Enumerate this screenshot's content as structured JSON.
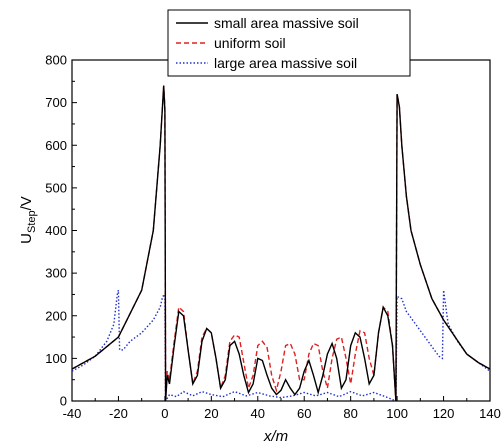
{
  "chart_data": {
    "type": "line",
    "xlabel": "x/m",
    "ylabel_main": "U",
    "ylabel_sub": "Step",
    "ylabel_unit": "/V",
    "xlim": [
      -40,
      140
    ],
    "ylim": [
      0,
      800
    ],
    "xticks": [
      -40,
      -20,
      0,
      20,
      40,
      60,
      80,
      100,
      120,
      140
    ],
    "yticks": [
      0,
      100,
      200,
      300,
      400,
      500,
      600,
      700,
      800
    ],
    "grid": false,
    "legend_position": "top-right",
    "series": [
      {
        "name": "small area massive soil",
        "color": "#000000",
        "dash": "solid",
        "points": [
          [
            -40,
            75
          ],
          [
            -30,
            105
          ],
          [
            -20,
            150
          ],
          [
            -10,
            260
          ],
          [
            -5,
            400
          ],
          [
            -2,
            600
          ],
          [
            -0.5,
            740
          ],
          [
            0,
            680
          ],
          [
            0.3,
            0
          ],
          [
            1,
            60
          ],
          [
            2,
            40
          ],
          [
            4,
            130
          ],
          [
            6,
            210
          ],
          [
            8,
            200
          ],
          [
            10,
            120
          ],
          [
            12,
            40
          ],
          [
            14,
            60
          ],
          [
            16,
            140
          ],
          [
            18,
            170
          ],
          [
            20,
            160
          ],
          [
            22,
            100
          ],
          [
            24,
            30
          ],
          [
            26,
            50
          ],
          [
            28,
            130
          ],
          [
            30,
            140
          ],
          [
            32,
            110
          ],
          [
            34,
            60
          ],
          [
            36,
            20
          ],
          [
            38,
            40
          ],
          [
            40,
            100
          ],
          [
            42,
            95
          ],
          [
            44,
            60
          ],
          [
            46,
            30
          ],
          [
            48,
            15
          ],
          [
            50,
            25
          ],
          [
            52,
            50
          ],
          [
            54,
            30
          ],
          [
            56,
            15
          ],
          [
            58,
            30
          ],
          [
            60,
            70
          ],
          [
            62,
            95
          ],
          [
            64,
            60
          ],
          [
            66,
            20
          ],
          [
            68,
            60
          ],
          [
            70,
            110
          ],
          [
            72,
            135
          ],
          [
            74,
            100
          ],
          [
            76,
            30
          ],
          [
            78,
            50
          ],
          [
            80,
            130
          ],
          [
            82,
            160
          ],
          [
            84,
            150
          ],
          [
            86,
            100
          ],
          [
            88,
            40
          ],
          [
            90,
            60
          ],
          [
            92,
            160
          ],
          [
            94,
            220
          ],
          [
            96,
            200
          ],
          [
            98,
            130
          ],
          [
            99.5,
            0
          ],
          [
            100,
            720
          ],
          [
            101,
            690
          ],
          [
            102,
            600
          ],
          [
            104,
            480
          ],
          [
            106,
            400
          ],
          [
            110,
            320
          ],
          [
            115,
            240
          ],
          [
            120,
            190
          ],
          [
            125,
            150
          ],
          [
            130,
            110
          ],
          [
            135,
            90
          ],
          [
            140,
            75
          ]
        ]
      },
      {
        "name": "uniform soil",
        "color": "#e02020",
        "dash": "dashed",
        "points": [
          [
            -40,
            75
          ],
          [
            -30,
            105
          ],
          [
            -20,
            150
          ],
          [
            -10,
            260
          ],
          [
            -5,
            400
          ],
          [
            -2,
            600
          ],
          [
            -0.5,
            740
          ],
          [
            0,
            690
          ],
          [
            0.3,
            0
          ],
          [
            1,
            70
          ],
          [
            2,
            50
          ],
          [
            4,
            140
          ],
          [
            6,
            220
          ],
          [
            8,
            210
          ],
          [
            10,
            120
          ],
          [
            12,
            40
          ],
          [
            14,
            70
          ],
          [
            16,
            150
          ],
          [
            18,
            170
          ],
          [
            20,
            160
          ],
          [
            22,
            100
          ],
          [
            24,
            30
          ],
          [
            26,
            60
          ],
          [
            28,
            140
          ],
          [
            30,
            155
          ],
          [
            32,
            150
          ],
          [
            34,
            90
          ],
          [
            36,
            30
          ],
          [
            38,
            60
          ],
          [
            40,
            130
          ],
          [
            42,
            140
          ],
          [
            44,
            125
          ],
          [
            46,
            60
          ],
          [
            48,
            25
          ],
          [
            50,
            70
          ],
          [
            52,
            130
          ],
          [
            54,
            135
          ],
          [
            56,
            110
          ],
          [
            58,
            50
          ],
          [
            60,
            50
          ],
          [
            62,
            110
          ],
          [
            64,
            135
          ],
          [
            66,
            130
          ],
          [
            68,
            70
          ],
          [
            70,
            30
          ],
          [
            72,
            100
          ],
          [
            74,
            145
          ],
          [
            76,
            150
          ],
          [
            78,
            100
          ],
          [
            80,
            40
          ],
          [
            82,
            110
          ],
          [
            84,
            165
          ],
          [
            86,
            160
          ],
          [
            88,
            100
          ],
          [
            90,
            60
          ],
          [
            92,
            160
          ],
          [
            94,
            220
          ],
          [
            96,
            210
          ],
          [
            98,
            130
          ],
          [
            99.5,
            0
          ],
          [
            100,
            720
          ],
          [
            101,
            690
          ],
          [
            102,
            600
          ],
          [
            104,
            480
          ],
          [
            106,
            400
          ],
          [
            110,
            320
          ],
          [
            115,
            240
          ],
          [
            120,
            190
          ],
          [
            125,
            150
          ],
          [
            130,
            110
          ],
          [
            135,
            90
          ],
          [
            140,
            75
          ]
        ]
      },
      {
        "name": "large area massive soil",
        "color": "#2030d0",
        "dash": "dotted",
        "points": [
          [
            -40,
            70
          ],
          [
            -35,
            85
          ],
          [
            -30,
            105
          ],
          [
            -25,
            140
          ],
          [
            -22,
            180
          ],
          [
            -20.5,
            250
          ],
          [
            -20,
            260
          ],
          [
            -19.5,
            120
          ],
          [
            -18,
            120
          ],
          [
            -15,
            140
          ],
          [
            -10,
            160
          ],
          [
            -5,
            190
          ],
          [
            -2,
            220
          ],
          [
            -1,
            245
          ],
          [
            0,
            250
          ],
          [
            0.3,
            0
          ],
          [
            2,
            15
          ],
          [
            5,
            10
          ],
          [
            8,
            22
          ],
          [
            12,
            12
          ],
          [
            16,
            22
          ],
          [
            20,
            15
          ],
          [
            25,
            10
          ],
          [
            30,
            22
          ],
          [
            35,
            12
          ],
          [
            40,
            20
          ],
          [
            45,
            12
          ],
          [
            50,
            8
          ],
          [
            55,
            12
          ],
          [
            60,
            20
          ],
          [
            65,
            12
          ],
          [
            70,
            20
          ],
          [
            75,
            10
          ],
          [
            80,
            22
          ],
          [
            85,
            12
          ],
          [
            90,
            20
          ],
          [
            95,
            10
          ],
          [
            99.5,
            0
          ],
          [
            100,
            245
          ],
          [
            102,
            240
          ],
          [
            104,
            210
          ],
          [
            108,
            180
          ],
          [
            112,
            150
          ],
          [
            116,
            120
          ],
          [
            118,
            105
          ],
          [
            119.5,
            100
          ],
          [
            120,
            260
          ],
          [
            120.5,
            240
          ],
          [
            122,
            180
          ],
          [
            126,
            140
          ],
          [
            130,
            110
          ],
          [
            135,
            90
          ],
          [
            140,
            70
          ]
        ]
      }
    ]
  }
}
